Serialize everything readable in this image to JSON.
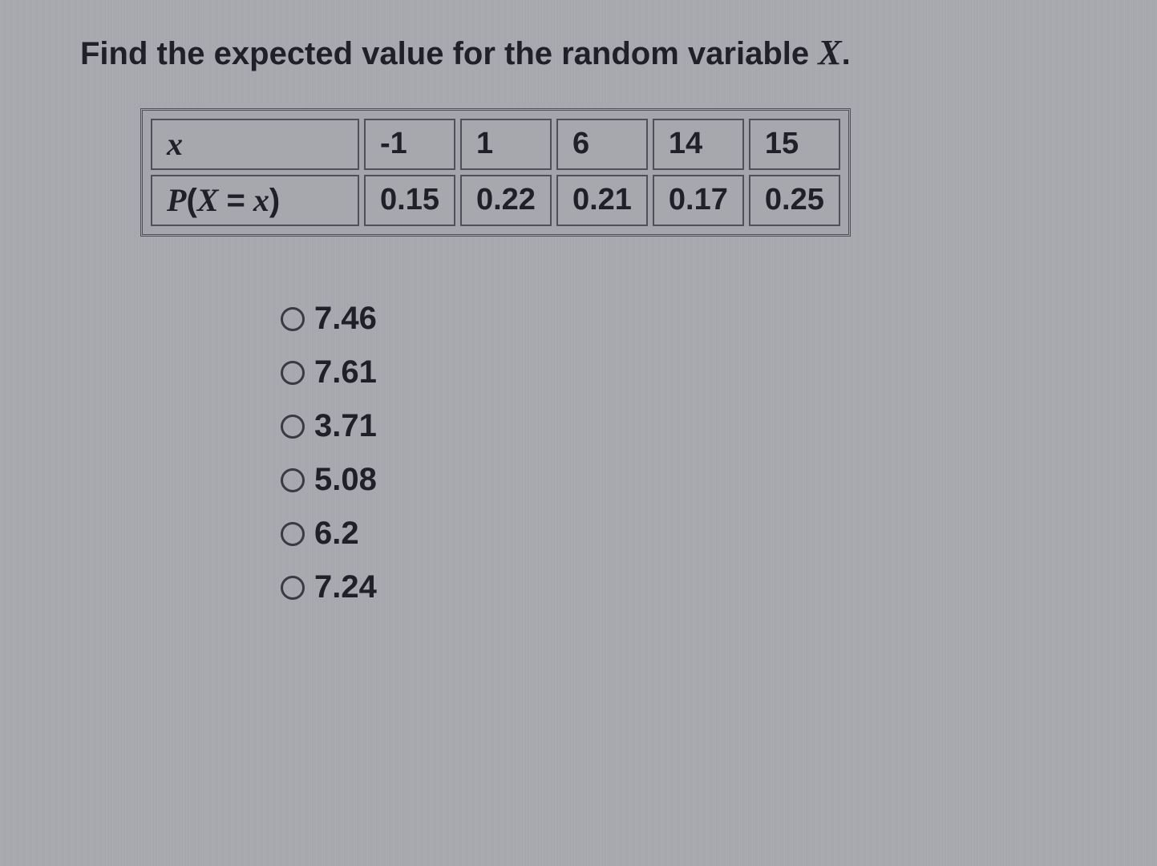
{
  "question": {
    "prefix": "Find the expected value for the random variable ",
    "variable": "X",
    "suffix": "."
  },
  "table": {
    "row1": {
      "header": "x",
      "cells": [
        "-1",
        "1",
        "6",
        "14",
        "15"
      ]
    },
    "row2": {
      "header_html": "P(X = x)",
      "header_display": "P(X = x)",
      "cells": [
        "0.15",
        "0.22",
        "0.21",
        "0.17",
        "0.25"
      ]
    },
    "colors": {
      "border": "#505058",
      "cell_bg": "#a6a8ae",
      "text": "#202028"
    },
    "font_sizes": {
      "header": 40,
      "cell": 38
    }
  },
  "options": [
    {
      "label": "7.46",
      "selected": false
    },
    {
      "label": "7.61",
      "selected": false
    },
    {
      "label": "3.71",
      "selected": false
    },
    {
      "label": "5.08",
      "selected": false
    },
    {
      "label": "6.2",
      "selected": false
    },
    {
      "label": "7.24",
      "selected": false
    }
  ],
  "styling": {
    "background_color": "#a8aab0",
    "text_color": "#202028",
    "radio_border": "#3a3a42",
    "question_fontsize": 40,
    "option_fontsize": 40
  }
}
